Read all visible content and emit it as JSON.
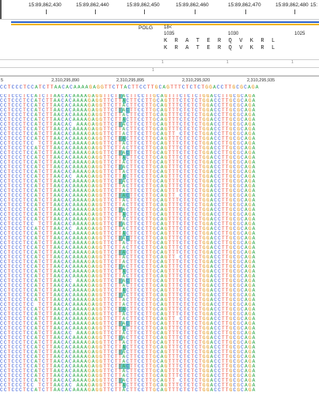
{
  "top_ruler": {
    "ticks": [
      "15:89,862,430",
      "15:89,862,440",
      "15:89,862,450",
      "15:89,862,460",
      "15:89,862,470",
      "15:89,862,480",
      "15:"
    ]
  },
  "gene": {
    "name": "POLG",
    "exon": "18<",
    "aa_numbers": [
      "1035",
      "1030",
      "1025"
    ],
    "aa_row_1": "KRATERQVKRL",
    "aa_row_2": "KRATERQVKRL"
  },
  "tracks": {
    "marker_1": "1",
    "marker_2": "1",
    "marker_3": "1",
    "marker_4": "1"
  },
  "read_coords": [
    "5",
    "2,310,295,890",
    "2,310,295,895",
    "2,310,295,920",
    "2,310,295,935"
  ],
  "reference": "CCTCCCTCCATCTTAACACAAAAGAGGTTCTTACTTCCTTGCAGTTTCTCTCTGGACCTTGCGCAGA",
  "read_sequence": "CCTCCCTCCATCTTAACACAAAAGAGGTTCTTACTTCCTTGCAGTTTCTCTCTGGACCTTGCGCAGA",
  "colors": {
    "A": "#2fa84a",
    "C": "#2f56d6",
    "G": "#e08a00",
    "T": "#e8402e",
    "highlight": "#6ec7c1"
  }
}
